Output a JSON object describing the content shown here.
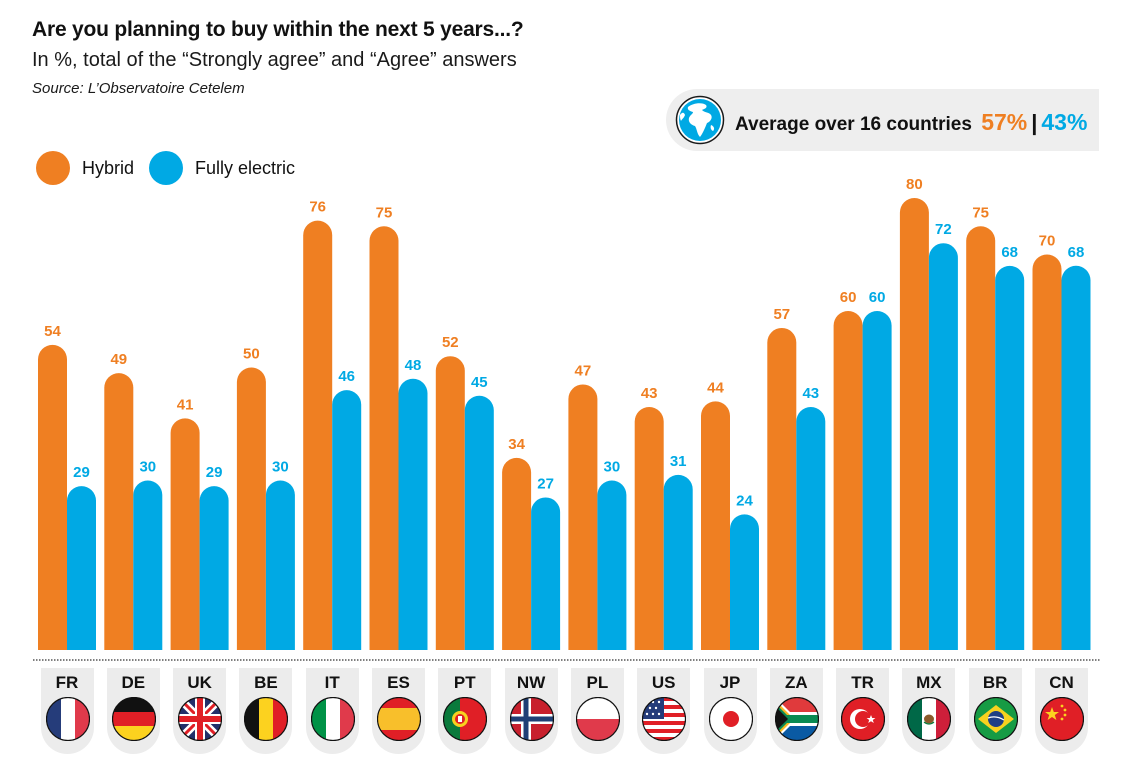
{
  "header": {
    "title": "Are you planning to buy within the next 5 years...?",
    "subtitle": "In %, total of the “Strongly agree” and “Agree” answers",
    "source": "Source: L’Observatoire Cetelem"
  },
  "average": {
    "icon": "globe-icon",
    "label": "Average over 16 countries",
    "hybrid": "57%",
    "separator": "|",
    "electric": "43%"
  },
  "colors": {
    "hybrid": "#ef7f22",
    "electric": "#00a9e4",
    "tab_bg": "#ececec"
  },
  "chart_data": {
    "type": "bar",
    "title": "Are you planning to buy within the next 5 years...?",
    "subtitle": "In %, total of the “Strongly agree” and “Agree” answers",
    "xlabel": "",
    "ylabel": "%",
    "ylim": [
      0,
      80
    ],
    "grid": false,
    "legend_position": "top-left",
    "categories": [
      "FR",
      "DE",
      "UK",
      "BE",
      "IT",
      "ES",
      "PT",
      "NW",
      "PL",
      "US",
      "JP",
      "ZA",
      "TR",
      "MX",
      "BR",
      "CN"
    ],
    "series": [
      {
        "name": "Hybrid",
        "color": "#ef7f22",
        "values": [
          54,
          49,
          41,
          50,
          76,
          75,
          52,
          34,
          47,
          43,
          44,
          57,
          60,
          80,
          75,
          70
        ]
      },
      {
        "name": "Fully electric",
        "color": "#00a9e4",
        "values": [
          29,
          30,
          29,
          30,
          46,
          48,
          45,
          27,
          30,
          31,
          24,
          43,
          60,
          72,
          68,
          68
        ]
      }
    ]
  },
  "legend": [
    {
      "label": "Hybrid",
      "color": "#ef7f22"
    },
    {
      "label": "Fully electric",
      "color": "#00a9e4"
    }
  ],
  "countries": [
    {
      "code": "FR",
      "flag": "france-flag-icon"
    },
    {
      "code": "DE",
      "flag": "germany-flag-icon"
    },
    {
      "code": "UK",
      "flag": "uk-flag-icon"
    },
    {
      "code": "BE",
      "flag": "belgium-flag-icon"
    },
    {
      "code": "IT",
      "flag": "italy-flag-icon"
    },
    {
      "code": "ES",
      "flag": "spain-flag-icon"
    },
    {
      "code": "PT",
      "flag": "portugal-flag-icon"
    },
    {
      "code": "NW",
      "flag": "norway-flag-icon"
    },
    {
      "code": "PL",
      "flag": "poland-flag-icon"
    },
    {
      "code": "US",
      "flag": "usa-flag-icon"
    },
    {
      "code": "JP",
      "flag": "japan-flag-icon"
    },
    {
      "code": "ZA",
      "flag": "south-africa-flag-icon"
    },
    {
      "code": "TR",
      "flag": "turkey-flag-icon"
    },
    {
      "code": "MX",
      "flag": "mexico-flag-icon"
    },
    {
      "code": "BR",
      "flag": "brazil-flag-icon"
    },
    {
      "code": "CN",
      "flag": "china-flag-icon"
    }
  ]
}
